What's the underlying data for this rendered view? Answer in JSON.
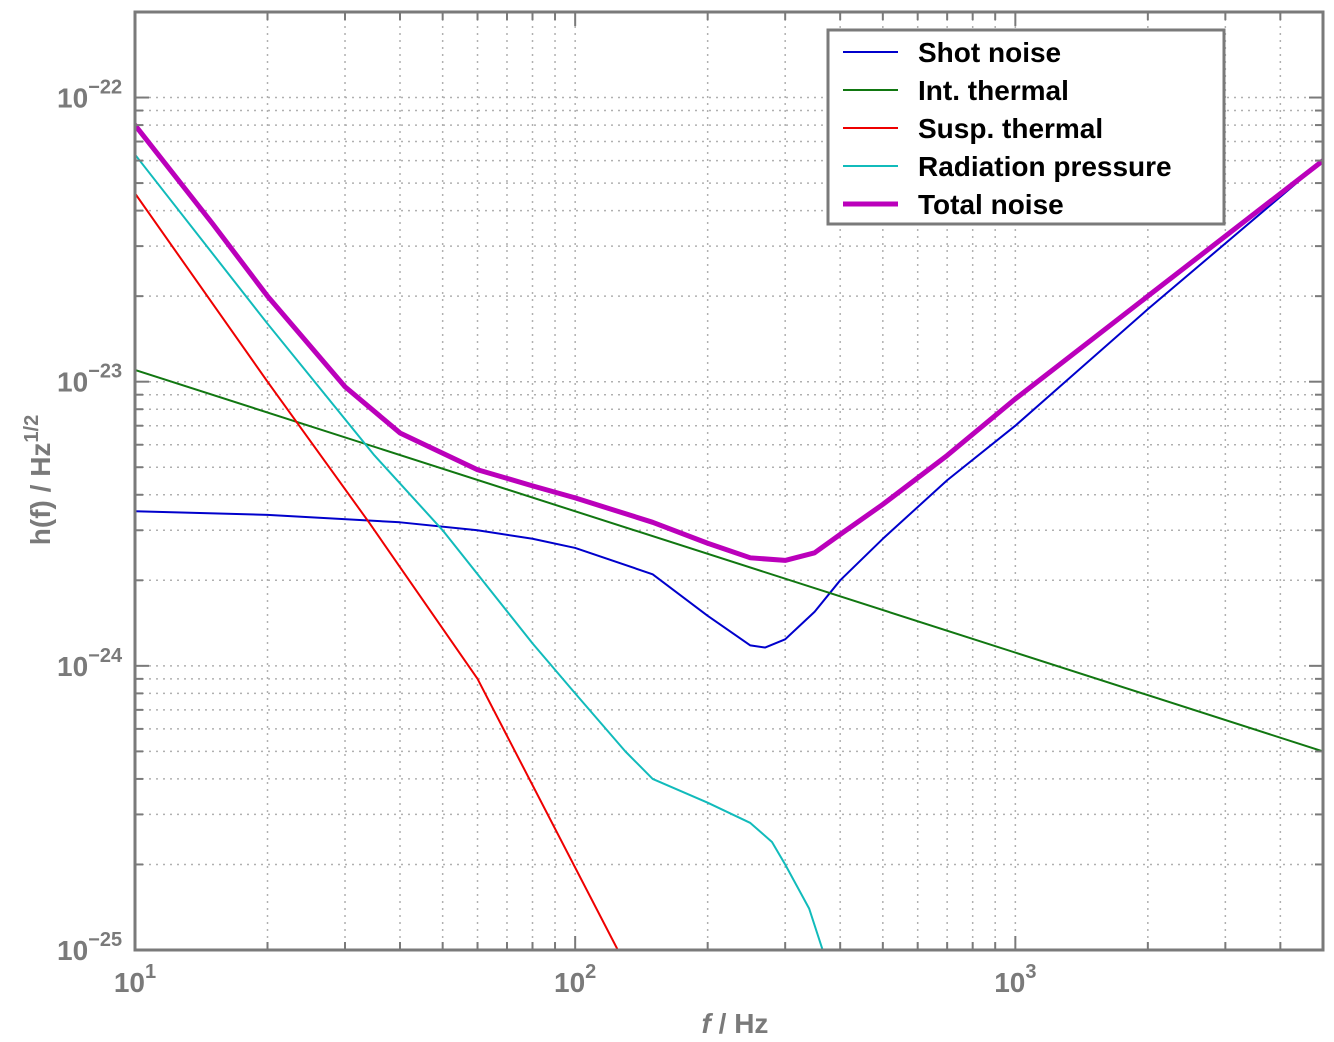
{
  "chart_data": {
    "type": "line",
    "xscale": "log",
    "yscale": "log",
    "xlim": [
      10,
      5000
    ],
    "ylim": [
      1e-25,
      2e-22
    ],
    "grid": true,
    "legend_position": "top-right",
    "xlabel_italic": "f",
    "xlabel_rest": " / Hz",
    "ylabel_main": "h(f) / Hz",
    "ylabel_sup": "1/2",
    "x_ticks": [
      {
        "value": 10,
        "base": "10",
        "exp": "1"
      },
      {
        "value": 100,
        "base": "10",
        "exp": "2"
      },
      {
        "value": 1000,
        "base": "10",
        "exp": "3"
      }
    ],
    "y_ticks": [
      {
        "value": 1e-22,
        "base": "10",
        "exp": "−22"
      },
      {
        "value": 1e-23,
        "base": "10",
        "exp": "−23"
      },
      {
        "value": 1e-24,
        "base": "10",
        "exp": "−24"
      },
      {
        "value": 1e-25,
        "base": "10",
        "exp": "−25"
      }
    ],
    "series": [
      {
        "name": "Shot noise",
        "color": "#0000cc",
        "width": 2,
        "x": [
          10,
          20,
          40,
          60,
          80,
          100,
          150,
          200,
          250,
          270,
          300,
          350,
          400,
          500,
          700,
          1000,
          2000,
          5000
        ],
        "y": [
          3.5e-24,
          3.4e-24,
          3.2e-24,
          3e-24,
          2.8e-24,
          2.6e-24,
          2.1e-24,
          1.5e-24,
          1.18e-24,
          1.16e-24,
          1.24e-24,
          1.55e-24,
          2e-24,
          2.8e-24,
          4.5e-24,
          7e-24,
          1.8e-23,
          6e-23
        ]
      },
      {
        "name": "Int. thermal",
        "color": "#117711",
        "width": 2,
        "x": [
          10,
          5000
        ],
        "y": [
          1.1e-23,
          5e-25
        ]
      },
      {
        "name": "Susp. thermal",
        "color": "#ee0000",
        "width": 2,
        "x": [
          10,
          20,
          34,
          60,
          125
        ],
        "y": [
          4.6e-23,
          1e-23,
          3.2e-24,
          9e-25,
          1e-25
        ]
      },
      {
        "name": "Radiation pressure",
        "color": "#11bbbb",
        "width": 2,
        "x": [
          10,
          20,
          35,
          50,
          80,
          100,
          130,
          150,
          200,
          250,
          280,
          300,
          340,
          365
        ],
        "y": [
          6.3e-23,
          1.6e-23,
          5.5e-24,
          3e-24,
          1.2e-24,
          8e-25,
          5e-25,
          4e-25,
          3.3e-25,
          2.8e-25,
          2.4e-25,
          2e-25,
          1.4e-25,
          1e-25
        ]
      },
      {
        "name": "Total noise",
        "color": "#bb00bb",
        "width": 5,
        "x": [
          10,
          15,
          20,
          30,
          40,
          60,
          80,
          100,
          150,
          200,
          250,
          300,
          350,
          400,
          500,
          700,
          1000,
          2000,
          5000
        ],
        "y": [
          8e-23,
          3.6e-23,
          2e-23,
          9.6e-24,
          6.6e-24,
          4.9e-24,
          4.3e-24,
          3.9e-24,
          3.2e-24,
          2.7e-24,
          2.4e-24,
          2.35e-24,
          2.5e-24,
          2.9e-24,
          3.7e-24,
          5.5e-24,
          8.7e-24,
          2e-23,
          6e-23
        ]
      }
    ]
  }
}
